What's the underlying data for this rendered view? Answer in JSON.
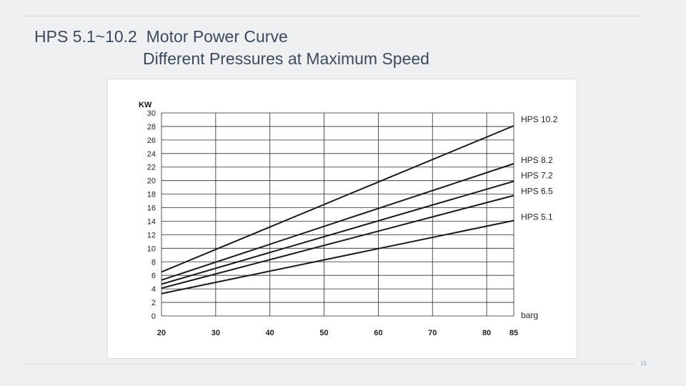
{
  "slide": {
    "title_line1": "HPS 5.1~10.2  Motor Power Curve",
    "title_line2": "Different Pressures at Maximum Speed",
    "page_number": "15"
  },
  "chart_data": {
    "type": "line",
    "title": "",
    "xlabel": "barg",
    "ylabel": "KW",
    "xlim": [
      20,
      85
    ],
    "ylim": [
      0,
      30
    ],
    "x_ticks": [
      20,
      30,
      40,
      50,
      60,
      70,
      80,
      85
    ],
    "y_ticks": [
      0,
      2,
      4,
      6,
      8,
      10,
      12,
      14,
      16,
      18,
      20,
      22,
      24,
      26,
      28,
      30
    ],
    "grid": true,
    "legend": "right-end labels",
    "series": [
      {
        "name": "HPS 10.2",
        "x": [
          20,
          85
        ],
        "y": [
          6.5,
          28.1
        ]
      },
      {
        "name": "HPS 8.2",
        "x": [
          20,
          85
        ],
        "y": [
          5.3,
          22.5
        ]
      },
      {
        "name": "HPS 7.2",
        "x": [
          20,
          85
        ],
        "y": [
          4.7,
          19.9
        ]
      },
      {
        "name": "HPS 6.5",
        "x": [
          20,
          85
        ],
        "y": [
          4.1,
          17.8
        ]
      },
      {
        "name": "HPS 5.1",
        "x": [
          20,
          85
        ],
        "y": [
          3.3,
          14.1
        ]
      }
    ],
    "line_color": "#1a1a1a",
    "grid_color": "#2a2a2a"
  }
}
